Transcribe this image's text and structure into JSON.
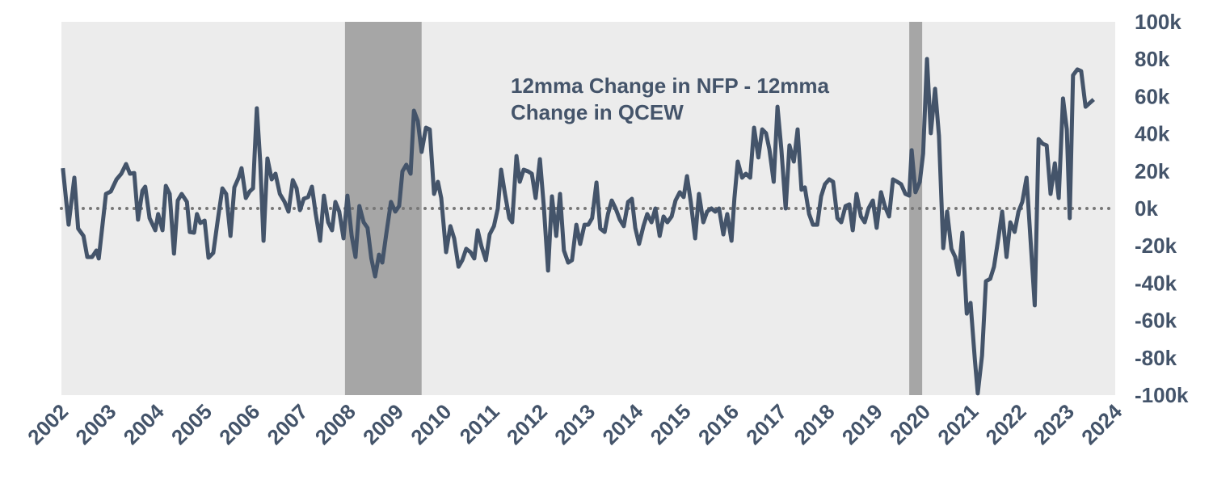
{
  "chart_data": {
    "type": "line",
    "title": "12mma Change in NFP - 12mma Change in QCEW",
    "background": "#ececec",
    "xlim": [
      2002,
      2024
    ],
    "xticks": [
      2002,
      2003,
      2004,
      2005,
      2006,
      2007,
      2008,
      2009,
      2010,
      2011,
      2012,
      2013,
      2014,
      2015,
      2016,
      2017,
      2018,
      2019,
      2020,
      2021,
      2022,
      2023,
      2024
    ],
    "ylim": [
      -100000,
      100000
    ],
    "yticks": [
      {
        "value": -100000,
        "label": "-100k"
      },
      {
        "value": -80000,
        "label": "-80k"
      },
      {
        "value": -60000,
        "label": "-60k"
      },
      {
        "value": -40000,
        "label": "-40k"
      },
      {
        "value": -20000,
        "label": "-20k"
      },
      {
        "value": 0,
        "label": "0k"
      },
      {
        "value": 20000,
        "label": "20k"
      },
      {
        "value": 40000,
        "label": "40k"
      },
      {
        "value": 60000,
        "label": "60k"
      },
      {
        "value": 80000,
        "label": "80k"
      },
      {
        "value": 100000,
        "label": "100k"
      }
    ],
    "y_axis_side": "right",
    "reference_line": 0,
    "reference_line_color": "#777777",
    "shaded_regions": [
      [
        2007.92,
        2009.52
      ],
      [
        2019.7,
        2019.97
      ]
    ],
    "shade_color": "#a6a6a6",
    "x": [
      2002.03,
      2002.15,
      2002.27,
      2002.35,
      2002.46,
      2002.54,
      2002.64,
      2002.73,
      2002.78,
      2002.93,
      2003.03,
      2003.15,
      2003.25,
      2003.35,
      2003.43,
      2003.52,
      2003.6,
      2003.69,
      2003.75,
      2003.84,
      2003.96,
      2004.02,
      2004.11,
      2004.18,
      2004.26,
      2004.35,
      2004.43,
      2004.51,
      2004.62,
      2004.68,
      2004.77,
      2004.83,
      2004.9,
      2004.99,
      2005.07,
      2005.17,
      2005.27,
      2005.36,
      2005.44,
      2005.53,
      2005.61,
      2005.7,
      2005.76,
      2005.85,
      2005.93,
      2006.0,
      2006.08,
      2006.15,
      2006.22,
      2006.3,
      2006.39,
      2006.47,
      2006.56,
      2006.66,
      2006.74,
      2006.83,
      2006.91,
      2006.98,
      2007.06,
      2007.15,
      2007.23,
      2007.31,
      2007.4,
      2007.48,
      2007.57,
      2007.65,
      2007.72,
      2007.8,
      2007.89,
      2007.97,
      2008.06,
      2008.14,
      2008.22,
      2008.31,
      2008.39,
      2008.47,
      2008.55,
      2008.63,
      2008.7,
      2008.78,
      2008.88,
      2008.97,
      2009.05,
      2009.12,
      2009.2,
      2009.29,
      2009.36,
      2009.44,
      2009.52,
      2009.61,
      2009.69,
      2009.78,
      2009.86,
      2009.93,
      2010.03,
      2010.12,
      2010.2,
      2010.29,
      2010.37,
      2010.45,
      2010.54,
      2010.62,
      2010.69,
      2010.77,
      2010.86,
      2010.94,
      2011.03,
      2011.11,
      2011.18,
      2011.26,
      2011.35,
      2011.41,
      2011.5,
      2011.57,
      2011.65,
      2011.74,
      2011.82,
      2011.9,
      2011.99,
      2012.07,
      2012.16,
      2012.24,
      2012.33,
      2012.41,
      2012.49,
      2012.58,
      2012.66,
      2012.75,
      2012.83,
      2012.92,
      2013.0,
      2013.08,
      2013.17,
      2013.25,
      2013.34,
      2013.41,
      2013.49,
      2013.57,
      2013.66,
      2013.74,
      2013.83,
      2013.91,
      2013.98,
      2014.06,
      2014.15,
      2014.23,
      2014.32,
      2014.4,
      2014.49,
      2014.57,
      2014.65,
      2014.74,
      2014.82,
      2014.91,
      2014.99,
      2015.06,
      2015.14,
      2015.23,
      2015.31,
      2015.4,
      2015.48,
      2015.57,
      2015.65,
      2015.73,
      2015.82,
      2015.9,
      2015.99,
      2016.05,
      2016.12,
      2016.21,
      2016.29,
      2016.38,
      2016.46,
      2016.55,
      2016.63,
      2016.71,
      2016.78,
      2016.87,
      2016.95,
      2017.03,
      2017.12,
      2017.2,
      2017.29,
      2017.37,
      2017.45,
      2017.52,
      2017.61,
      2017.69,
      2017.78,
      2017.86,
      2017.94,
      2018.03,
      2018.11,
      2018.2,
      2018.28,
      2018.37,
      2018.45,
      2018.52,
      2018.6,
      2018.69,
      2018.77,
      2018.85,
      2018.94,
      2019.02,
      2019.11,
      2019.19,
      2019.28,
      2019.36,
      2019.45,
      2019.53,
      2019.62,
      2019.7,
      2019.75,
      2019.83,
      2019.92,
      2019.99,
      2020.07,
      2020.15,
      2020.24,
      2020.32,
      2020.41,
      2020.49,
      2020.58,
      2020.66,
      2020.73,
      2020.81,
      2020.9,
      2020.98,
      2021.07,
      2021.13,
      2021.22,
      2021.3,
      2021.39,
      2021.47,
      2021.56,
      2021.64,
      2021.73,
      2021.81,
      2021.9,
      2021.98,
      2022.06,
      2022.15,
      2022.23,
      2022.32,
      2022.4,
      2022.49,
      2022.57,
      2022.65,
      2022.74,
      2022.82,
      2022.91,
      2022.99,
      2023.05,
      2023.12,
      2023.21,
      2023.29,
      2023.38,
      2023.46,
      2023.55
    ],
    "series": [
      {
        "color": "#44546a",
        "values": [
          21600,
          -8700,
          16500,
          -10800,
          -14700,
          -26000,
          -26000,
          -22500,
          -26800,
          7800,
          9100,
          15600,
          18600,
          23800,
          18600,
          19000,
          -6000,
          9500,
          11700,
          -5200,
          -11700,
          -3000,
          -11700,
          12100,
          7800,
          -24200,
          4300,
          7800,
          3500,
          -12600,
          -13000,
          -3000,
          -7800,
          -6500,
          -26400,
          -23800,
          -5200,
          10800,
          7800,
          -14700,
          11300,
          16500,
          21600,
          5600,
          9100,
          10800,
          53700,
          25100,
          -17300,
          26800,
          15600,
          18600,
          7800,
          3500,
          -1700,
          15200,
          10800,
          -900,
          5200,
          6100,
          11700,
          -3000,
          -17300,
          6900,
          -7400,
          -11700,
          3500,
          -1700,
          -16000,
          6900,
          -14700,
          -26000,
          1300,
          -7400,
          -10400,
          -26800,
          -36400,
          -24700,
          -29000,
          -13900,
          3500,
          -1700,
          1300,
          19900,
          23400,
          18600,
          52400,
          46800,
          30300,
          43300,
          42400,
          7800,
          14300,
          5600,
          -23400,
          -9500,
          -16000,
          -31200,
          -27700,
          -21600,
          -23400,
          -26800,
          -11700,
          -20300,
          -27700,
          -13900,
          -9500,
          0,
          20800,
          7800,
          -5200,
          -7400,
          28100,
          14300,
          20800,
          19900,
          18600,
          5600,
          26400,
          1300,
          -33300,
          6500,
          -14700,
          7800,
          -22500,
          -29000,
          -27700,
          -8700,
          -19000,
          -8700,
          -8700,
          -5200,
          13900,
          -10800,
          -12600,
          -3000,
          4300,
          0,
          -6100,
          -9500,
          3500,
          5200,
          -10400,
          -19000,
          -9500,
          -3000,
          -7400,
          0,
          -14700,
          -4300,
          -7400,
          -4300,
          4300,
          8700,
          6100,
          17300,
          3500,
          -16000,
          7800,
          -7400,
          -1700,
          0,
          -1700,
          0,
          -13900,
          -3000,
          -17300,
          5600,
          25100,
          16500,
          18600,
          16500,
          43300,
          27300,
          42400,
          40300,
          31600,
          14300,
          54500,
          31600,
          0,
          33800,
          25100,
          42400,
          10000,
          11300,
          -3000,
          -8700,
          -8700,
          6500,
          13000,
          15600,
          14300,
          -5200,
          -7400,
          1300,
          2200,
          -11700,
          7800,
          -4300,
          -7400,
          0,
          4300,
          -10400,
          8700,
          1300,
          -4300,
          15600,
          14300,
          13000,
          7800,
          6900,
          31200,
          8700,
          14300,
          29400,
          80100,
          40300,
          64100,
          39000,
          -21200,
          -1700,
          -21600,
          -26000,
          -35500,
          -13000,
          -56300,
          -50600,
          -80900,
          -99100,
          -78800,
          -39000,
          -37700,
          -31200,
          -16000,
          -1700,
          -26000,
          -7400,
          -12600,
          -1700,
          3500,
          16500,
          -16000,
          -51900,
          37200,
          34600,
          33800,
          7800,
          24200,
          5600,
          58900,
          42400,
          -5200,
          71400,
          74500,
          73600,
          54500,
          56300,
          58400
        ]
      }
    ]
  }
}
